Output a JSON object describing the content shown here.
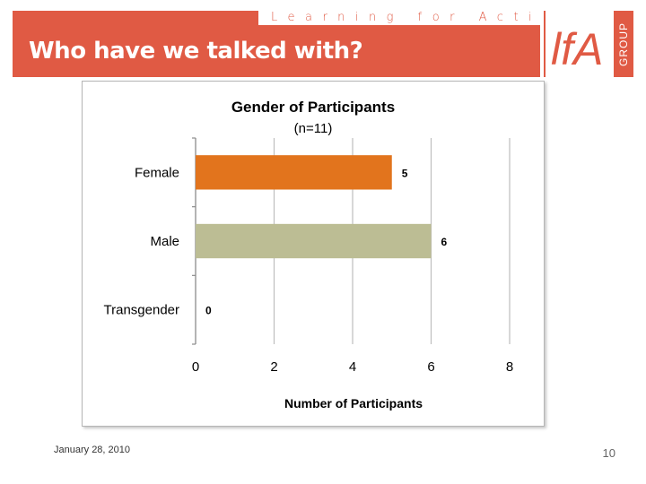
{
  "slide": {
    "title": "Who have we talked with?",
    "tagline": "Learning for Action",
    "logo_mark": "lfA",
    "logo_word": "GROUP",
    "date": "January 28, 2010",
    "page_number": "10"
  },
  "colors": {
    "banner": "#e05a44",
    "female": "#e2741d",
    "male": "#bcbd94",
    "grid": "#bfbfbf"
  },
  "chart_data": {
    "type": "bar",
    "orientation": "horizontal",
    "title": "Gender of Participants",
    "subtitle": "(n=11)",
    "xlabel": "Number of Participants",
    "ylabel": "",
    "categories": [
      "Female",
      "Male",
      "Transgender"
    ],
    "values": [
      5,
      6,
      0
    ],
    "data_labels": [
      "5",
      "6",
      "0"
    ],
    "xlim": [
      0,
      8
    ],
    "xticks": [
      "0",
      "2",
      "4",
      "6",
      "8"
    ],
    "grid": "vertical",
    "legend": "none"
  }
}
